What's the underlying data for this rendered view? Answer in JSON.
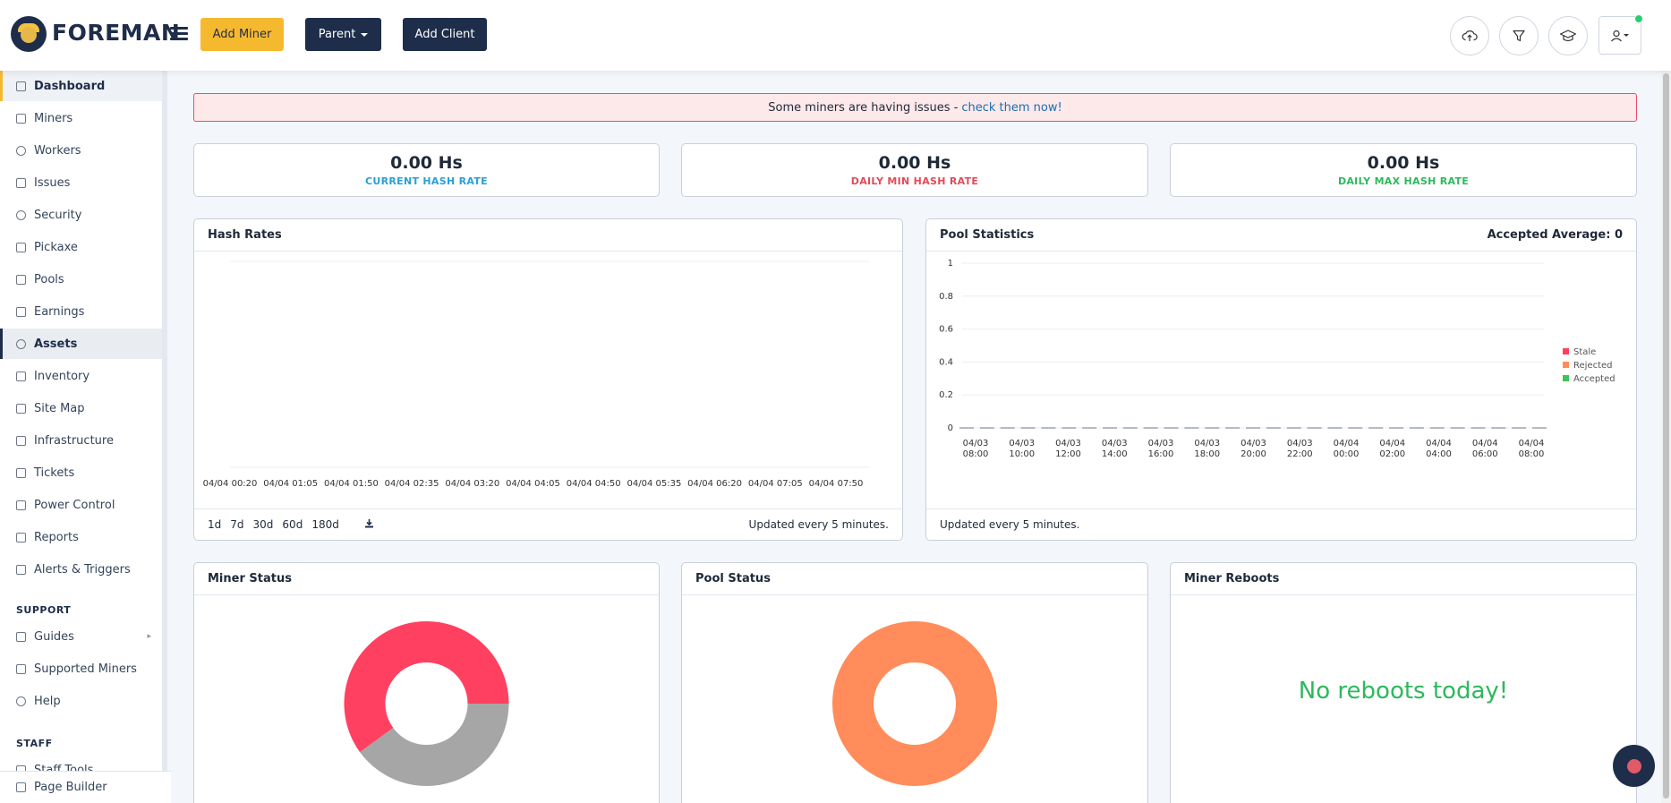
{
  "header": {
    "brand": "FOREMAN",
    "add_miner": "Add Miner",
    "parent": "Parent",
    "add_client": "Add Client",
    "icons": [
      "cloud-upload-icon",
      "filter-icon",
      "graduation-cap-icon",
      "user-icon"
    ]
  },
  "sidebar": {
    "items": [
      {
        "label": "Dashboard",
        "icon": "dashboard-icon"
      },
      {
        "label": "Miners",
        "icon": "miners-icon"
      },
      {
        "label": "Workers",
        "icon": "workers-icon"
      },
      {
        "label": "Issues",
        "icon": "warning-icon"
      },
      {
        "label": "Security",
        "icon": "shield-icon"
      },
      {
        "label": "Pickaxe",
        "icon": "pickaxe-icon"
      },
      {
        "label": "Pools",
        "icon": "pools-icon"
      },
      {
        "label": "Earnings",
        "icon": "earnings-icon"
      },
      {
        "label": "Assets",
        "icon": "assets-icon"
      },
      {
        "label": "Inventory",
        "icon": "inventory-icon"
      },
      {
        "label": "Site Map",
        "icon": "site-map-icon"
      },
      {
        "label": "Infrastructure",
        "icon": "layers-icon"
      },
      {
        "label": "Tickets",
        "icon": "ticket-icon"
      },
      {
        "label": "Power Control",
        "icon": "bolt-icon"
      },
      {
        "label": "Reports",
        "icon": "reports-icon"
      },
      {
        "label": "Alerts & Triggers",
        "icon": "alert-icon"
      }
    ],
    "support_heading": "SUPPORT",
    "support_items": [
      {
        "label": "Guides",
        "icon": "book-icon"
      },
      {
        "label": "Supported Miners",
        "icon": "list-icon"
      },
      {
        "label": "Help",
        "icon": "help-icon"
      }
    ],
    "staff_heading": "STAFF",
    "staff_items": [
      {
        "label": "Staff Tools",
        "icon": "tools-icon"
      }
    ],
    "page_builder": "Page Builder"
  },
  "alert": {
    "text": "Some miners are having issues -",
    "link": "check them now!"
  },
  "stats": [
    {
      "value": "0.00 Hs",
      "label": "CURRENT HASH RATE",
      "color": "#2a9fd6"
    },
    {
      "value": "0.00 Hs",
      "label": "DAILY MIN HASH RATE",
      "color": "#e04b5a"
    },
    {
      "value": "0.00 Hs",
      "label": "DAILY MAX HASH RATE",
      "color": "#2eb85c"
    }
  ],
  "hash_rates": {
    "title": "Hash Rates",
    "ranges": [
      "1d",
      "7d",
      "30d",
      "60d",
      "180d"
    ],
    "updated": "Updated every 5 minutes."
  },
  "pool_stats": {
    "title": "Pool Statistics",
    "accepted_average": "Accepted Average: 0",
    "updated": "Updated every 5 minutes."
  },
  "miner_status": {
    "title": "Miner Status"
  },
  "pool_status": {
    "title": "Pool Status"
  },
  "miner_reboots": {
    "title": "Miner Reboots",
    "message": "No reboots today!"
  },
  "chart_data": [
    {
      "type": "line",
      "title": "Hash Rates",
      "x": [
        "04/04 00:20",
        "04/04 01:05",
        "04/04 01:50",
        "04/04 02:35",
        "04/04 03:20",
        "04/04 04:05",
        "04/04 04:50",
        "04/04 05:35",
        "04/04 06:20",
        "04/04 07:05",
        "04/04 07:50"
      ],
      "series": [],
      "grid": true
    },
    {
      "type": "line",
      "title": "Pool Statistics",
      "x": [
        [
          "04/03",
          "08:00"
        ],
        [
          "04/03",
          "10:00"
        ],
        [
          "04/03",
          "12:00"
        ],
        [
          "04/03",
          "14:00"
        ],
        [
          "04/03",
          "16:00"
        ],
        [
          "04/03",
          "18:00"
        ],
        [
          "04/03",
          "20:00"
        ],
        [
          "04/03",
          "22:00"
        ],
        [
          "04/04",
          "00:00"
        ],
        [
          "04/04",
          "02:00"
        ],
        [
          "04/04",
          "04:00"
        ],
        [
          "04/04",
          "06:00"
        ],
        [
          "04/04",
          "08:00"
        ]
      ],
      "yticks": [
        "1",
        "0.8",
        "0.6",
        "0.4",
        "0.2",
        "0"
      ],
      "ylim": [
        0,
        1
      ],
      "series": [
        {
          "name": "Stale",
          "color": "#ff4060",
          "values": [
            0,
            0,
            0,
            0,
            0,
            0,
            0,
            0,
            0,
            0,
            0,
            0,
            0
          ]
        },
        {
          "name": "Rejected",
          "color": "#ff8c5a",
          "values": [
            0,
            0,
            0,
            0,
            0,
            0,
            0,
            0,
            0,
            0,
            0,
            0,
            0
          ]
        },
        {
          "name": "Accepted",
          "color": "#3cc35a",
          "values": [
            0,
            0,
            0,
            0,
            0,
            0,
            0,
            0,
            0,
            0,
            0,
            0,
            0
          ]
        }
      ],
      "legend": "right",
      "grid": true
    },
    {
      "type": "pie",
      "title": "Miner Status",
      "slices": [
        {
          "color": "#ff4060",
          "value": 0.6
        },
        {
          "color": "#a6a6a6",
          "value": 0.4
        }
      ]
    },
    {
      "type": "pie",
      "title": "Pool Status",
      "slices": [
        {
          "color": "#ff8c5a",
          "value": 1.0
        }
      ]
    }
  ]
}
